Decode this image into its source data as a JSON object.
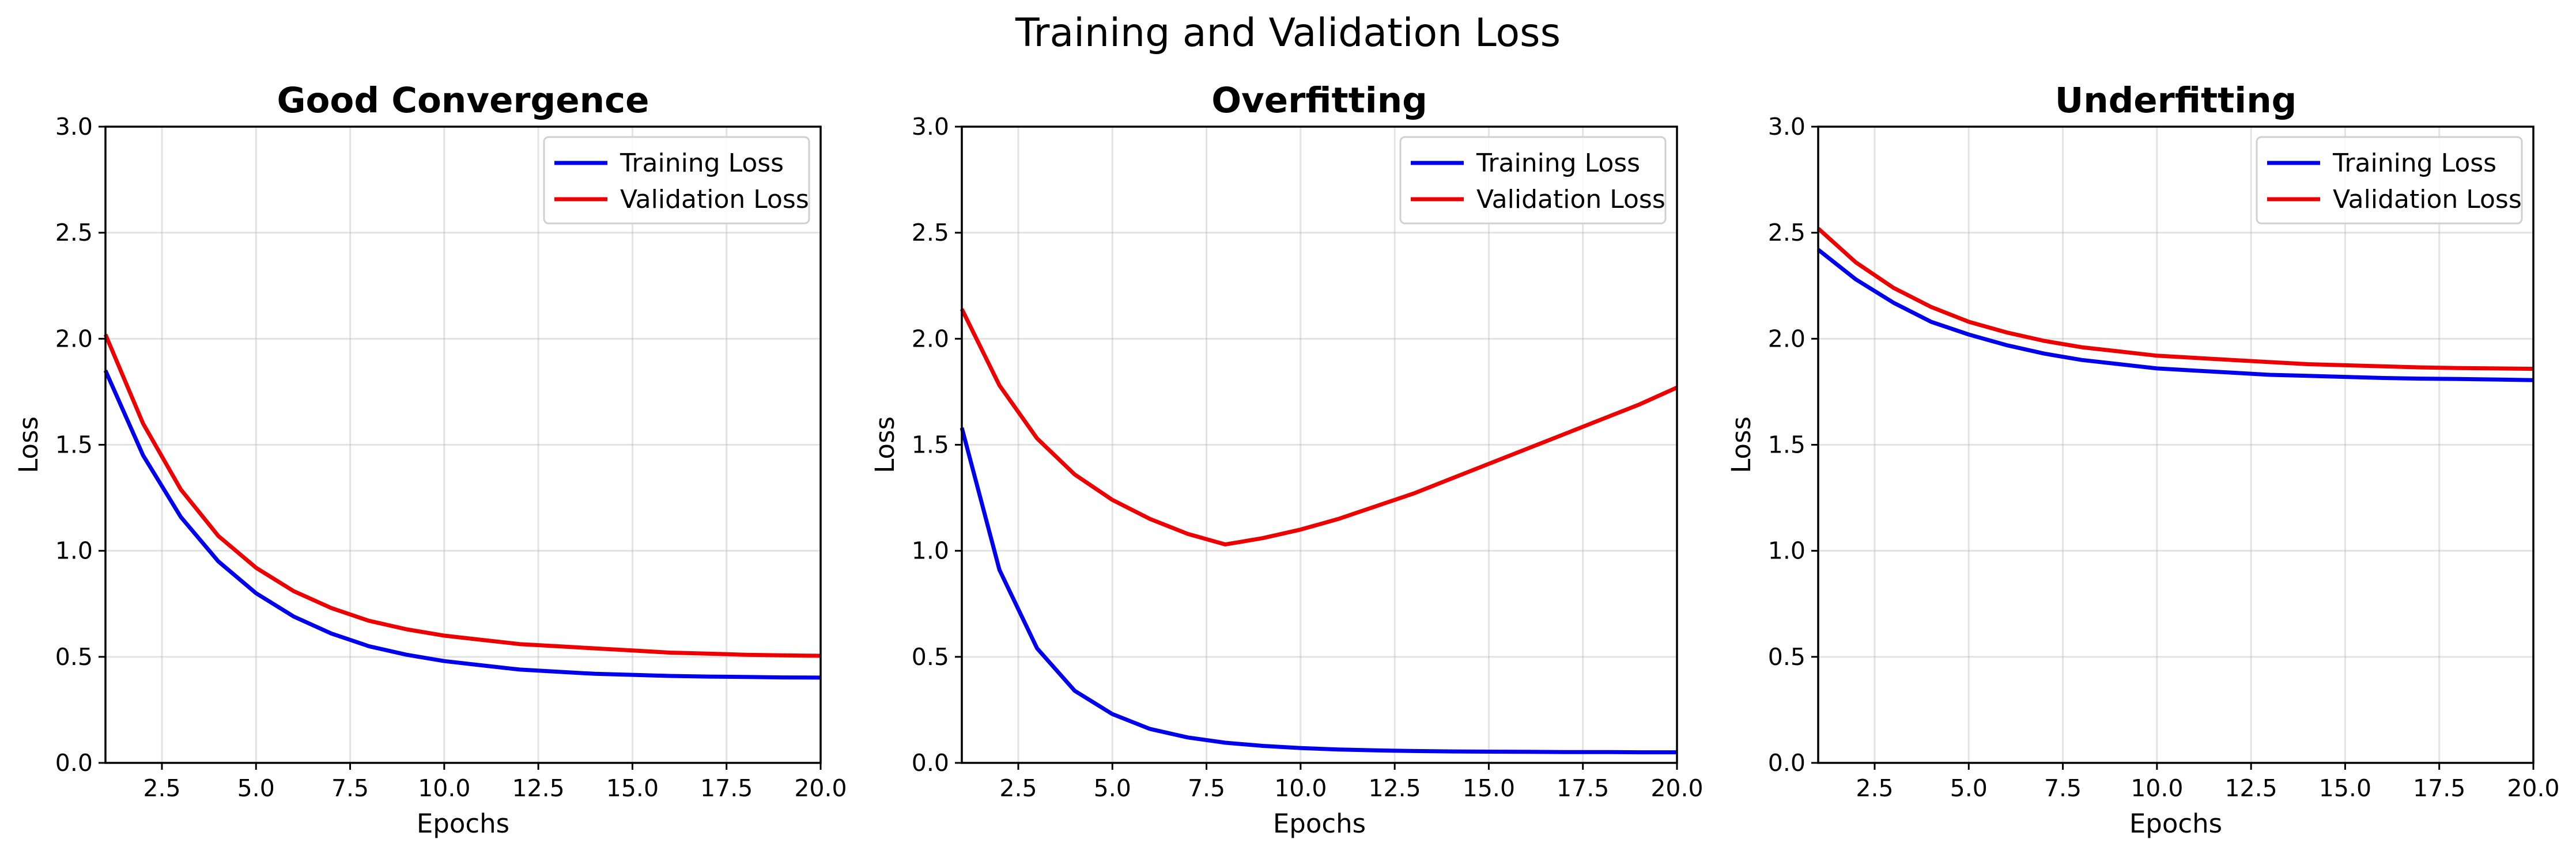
{
  "suptitle": "Training and Validation Loss",
  "colors": {
    "training": "#0000ee",
    "validation": "#ee0000"
  },
  "chart_data": [
    {
      "type": "line",
      "title": "Good Convergence",
      "xlabel": "Epochs",
      "ylabel": "Loss",
      "xlim": [
        1,
        20
      ],
      "ylim": [
        0,
        3
      ],
      "xticks": [
        "2.5",
        "5.0",
        "7.5",
        "10.0",
        "12.5",
        "15.0",
        "17.5",
        "20.0"
      ],
      "yticks": [
        "0.0",
        "0.5",
        "1.0",
        "1.5",
        "2.0",
        "2.5",
        "3.0"
      ],
      "grid": true,
      "legend": "top-right",
      "x": [
        1,
        2,
        3,
        4,
        5,
        6,
        7,
        8,
        9,
        10,
        11,
        12,
        13,
        14,
        15,
        16,
        17,
        18,
        19,
        20
      ],
      "series": [
        {
          "name": "Training Loss",
          "color": "#0000ee",
          "values": [
            1.85,
            1.45,
            1.16,
            0.95,
            0.8,
            0.69,
            0.61,
            0.55,
            0.51,
            0.48,
            0.46,
            0.44,
            0.43,
            0.42,
            0.415,
            0.41,
            0.407,
            0.405,
            0.403,
            0.402
          ]
        },
        {
          "name": "Validation Loss",
          "color": "#ee0000",
          "values": [
            2.02,
            1.6,
            1.29,
            1.07,
            0.92,
            0.81,
            0.73,
            0.67,
            0.63,
            0.6,
            0.58,
            0.56,
            0.55,
            0.54,
            0.53,
            0.52,
            0.515,
            0.51,
            0.507,
            0.505
          ]
        }
      ]
    },
    {
      "type": "line",
      "title": "Overfitting",
      "xlabel": "Epochs",
      "ylabel": "Loss",
      "xlim": [
        1,
        20
      ],
      "ylim": [
        0,
        3
      ],
      "xticks": [
        "2.5",
        "5.0",
        "7.5",
        "10.0",
        "12.5",
        "15.0",
        "17.5",
        "20.0"
      ],
      "yticks": [
        "0.0",
        "0.5",
        "1.0",
        "1.5",
        "2.0",
        "2.5",
        "3.0"
      ],
      "grid": true,
      "legend": "top-right",
      "x": [
        1,
        2,
        3,
        4,
        5,
        6,
        7,
        8,
        9,
        10,
        11,
        12,
        13,
        14,
        15,
        16,
        17,
        18,
        19,
        20
      ],
      "series": [
        {
          "name": "Training Loss",
          "color": "#0000ee",
          "values": [
            1.58,
            0.91,
            0.54,
            0.34,
            0.23,
            0.16,
            0.12,
            0.095,
            0.08,
            0.07,
            0.063,
            0.059,
            0.056,
            0.054,
            0.053,
            0.052,
            0.051,
            0.051,
            0.05,
            0.05
          ]
        },
        {
          "name": "Validation Loss",
          "color": "#ee0000",
          "values": [
            2.14,
            1.78,
            1.53,
            1.36,
            1.24,
            1.15,
            1.08,
            1.03,
            1.06,
            1.1,
            1.15,
            1.21,
            1.27,
            1.34,
            1.41,
            1.48,
            1.55,
            1.62,
            1.69,
            1.77
          ]
        }
      ]
    },
    {
      "type": "line",
      "title": "Underfitting",
      "xlabel": "Epochs",
      "ylabel": "Loss",
      "xlim": [
        1,
        20
      ],
      "ylim": [
        0,
        3
      ],
      "xticks": [
        "2.5",
        "5.0",
        "7.5",
        "10.0",
        "12.5",
        "15.0",
        "17.5",
        "20.0"
      ],
      "yticks": [
        "0.0",
        "0.5",
        "1.0",
        "1.5",
        "2.0",
        "2.5",
        "3.0"
      ],
      "grid": true,
      "legend": "top-right",
      "x": [
        1,
        2,
        3,
        4,
        5,
        6,
        7,
        8,
        9,
        10,
        11,
        12,
        13,
        14,
        15,
        16,
        17,
        18,
        19,
        20
      ],
      "series": [
        {
          "name": "Training Loss",
          "color": "#0000ee",
          "values": [
            2.42,
            2.28,
            2.17,
            2.08,
            2.02,
            1.97,
            1.93,
            1.9,
            1.88,
            1.86,
            1.85,
            1.84,
            1.83,
            1.825,
            1.82,
            1.815,
            1.812,
            1.81,
            1.808,
            1.805
          ]
        },
        {
          "name": "Validation Loss",
          "color": "#ee0000",
          "values": [
            2.52,
            2.36,
            2.24,
            2.15,
            2.08,
            2.03,
            1.99,
            1.96,
            1.94,
            1.92,
            1.91,
            1.9,
            1.89,
            1.88,
            1.875,
            1.87,
            1.865,
            1.862,
            1.86,
            1.858
          ]
        }
      ]
    }
  ]
}
